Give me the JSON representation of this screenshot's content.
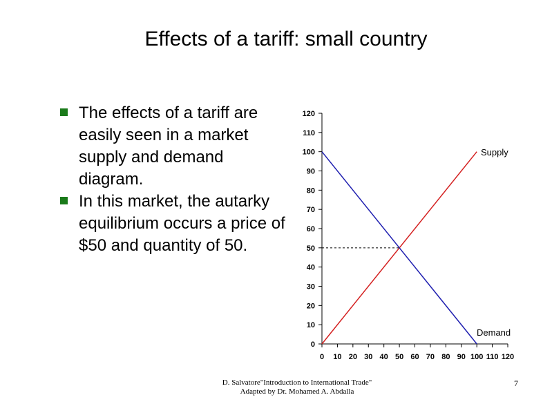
{
  "slide": {
    "title": "Effects of a tariff: small country",
    "bullets": [
      "The effects of a tariff are easily seen in a market supply and demand diagram.",
      "In this market, the autarky equilibrium occurs a price of $50 and quantity of 50."
    ],
    "footer_line1": "D. Salvatore\"Introduction to International Trade\"",
    "footer_line2": "Adapted by Dr. Mohamed A. Abdalla",
    "page_number": "7",
    "bullet_color": "#1a7a1a"
  },
  "chart_data": {
    "type": "line",
    "title": "",
    "xlabel": "",
    "ylabel": "",
    "xlim": [
      0,
      120
    ],
    "ylim": [
      0,
      120
    ],
    "x_ticks": [
      0,
      10,
      20,
      30,
      40,
      50,
      60,
      70,
      80,
      90,
      100,
      110,
      120
    ],
    "y_ticks": [
      0,
      10,
      20,
      30,
      40,
      50,
      60,
      70,
      80,
      90,
      100,
      110,
      120
    ],
    "grid": false,
    "series": [
      {
        "name": "Supply",
        "color": "#d42020",
        "x": [
          0,
          100
        ],
        "y": [
          0,
          100
        ]
      },
      {
        "name": "Demand",
        "color": "#2020b0",
        "x": [
          0,
          100
        ],
        "y": [
          100,
          0
        ]
      }
    ],
    "equilibrium": {
      "x": 50,
      "y": 50,
      "style": "dashed"
    }
  }
}
